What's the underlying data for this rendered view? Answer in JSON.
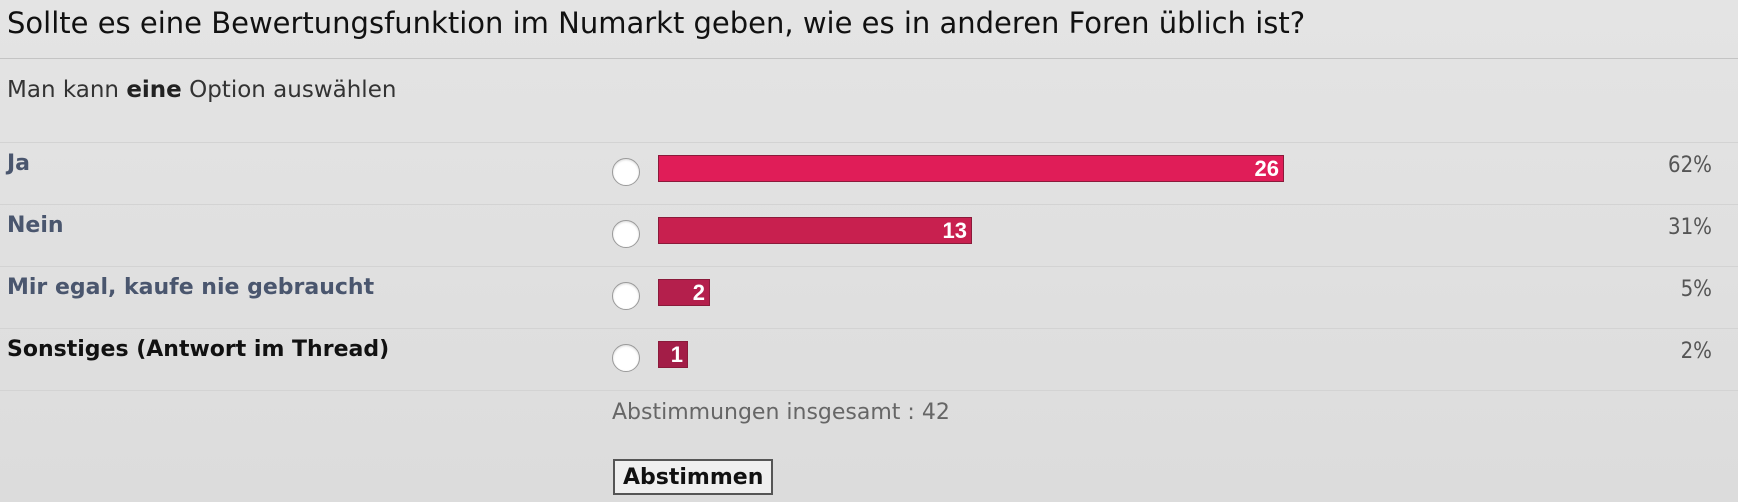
{
  "poll": {
    "question": "Sollte es eine Bewertungsfunktion im Numarkt geben, wie es in anderen Foren üblich ist?",
    "instruction_prefix": "Man kann ",
    "instruction_emphasis": "eine",
    "instruction_suffix": " Option auswählen",
    "options": [
      {
        "label": "Ja",
        "votes": 26,
        "votes_text": "26",
        "percent": "62%",
        "share": 0.62,
        "label_color": "#4a566e",
        "bar_color": "#e01d58"
      },
      {
        "label": "Nein",
        "votes": 13,
        "votes_text": "13",
        "percent": "31%",
        "share": 0.31,
        "label_color": "#4a566e",
        "bar_color": "#c8204f"
      },
      {
        "label": "Mir egal, kaufe nie gebraucht",
        "votes": 2,
        "votes_text": "2",
        "percent": "5%",
        "share": 0.05,
        "label_color": "#4a566e",
        "bar_color": "#b41f4c"
      },
      {
        "label": "Sonstiges (Antwort im Thread)",
        "votes": 1,
        "votes_text": "1",
        "percent": "2%",
        "share": 0.02,
        "label_color": "#111111",
        "bar_color": "#a31d47"
      }
    ],
    "total_label": "Abstimmungen insgesamt : 42",
    "vote_button_label": "Abstimmen"
  }
}
